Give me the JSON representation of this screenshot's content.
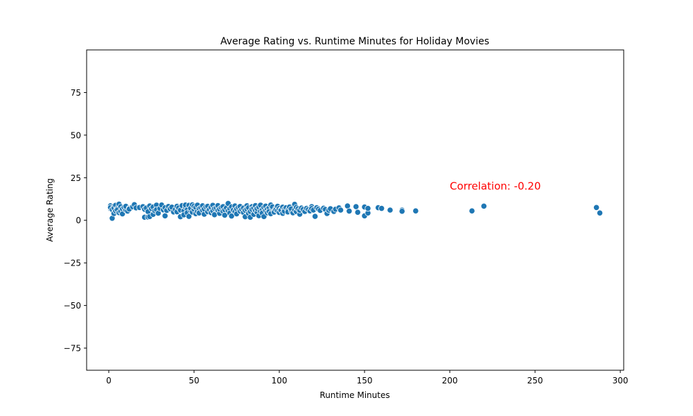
{
  "chart_data": {
    "type": "scatter",
    "title": "Average Rating vs. Runtime Minutes for Holiday Movies",
    "xlabel": "Runtime Minutes",
    "ylabel": "Average Rating",
    "xlim": [
      -13,
      302
    ],
    "ylim": [
      -88,
      100
    ],
    "xticks": [
      0,
      50,
      100,
      150,
      200,
      250,
      300
    ],
    "yticks": [
      -75,
      -50,
      -25,
      0,
      25,
      50,
      75
    ],
    "xtick_labels": [
      "0",
      "50",
      "100",
      "150",
      "200",
      "250",
      "300"
    ],
    "ytick_labels": [
      "−75",
      "−50",
      "−25",
      "0",
      "25",
      "50",
      "75"
    ],
    "grid": false,
    "marker_color": "#1f77b4",
    "annotation": {
      "text": "Correlation: -0.20",
      "x": 200,
      "y": 18,
      "color": "#ff0000"
    },
    "series": [
      {
        "points": [
          [
            1,
            8.5
          ],
          [
            1,
            6.8
          ],
          [
            1,
            7.5
          ],
          [
            2,
            6.3
          ],
          [
            2,
            1.2
          ],
          [
            3,
            8.3
          ],
          [
            3,
            4.0
          ],
          [
            3,
            7.2
          ],
          [
            4,
            5.5
          ],
          [
            4,
            8.8
          ],
          [
            5,
            7.0
          ],
          [
            5,
            6.1
          ],
          [
            6,
            9.5
          ],
          [
            6,
            4.5
          ],
          [
            7,
            8.0
          ],
          [
            7,
            5.2
          ],
          [
            8,
            6.7
          ],
          [
            8,
            3.8
          ],
          [
            9,
            7.6
          ],
          [
            10,
            6.0
          ],
          [
            10,
            8.2
          ],
          [
            11,
            5.4
          ],
          [
            12,
            7.1
          ],
          [
            12,
            6.6
          ],
          [
            14,
            7.9
          ],
          [
            15,
            9.2
          ],
          [
            16,
            7.3
          ],
          [
            18,
            7.5
          ],
          [
            20,
            8.0
          ],
          [
            21,
            1.8
          ],
          [
            21,
            6.5
          ],
          [
            22,
            7.2
          ],
          [
            23,
            5.1
          ],
          [
            23,
            1.9
          ],
          [
            24,
            8.4
          ],
          [
            24,
            2.2
          ],
          [
            25,
            6.9
          ],
          [
            26,
            7.8
          ],
          [
            26,
            3.5
          ],
          [
            27,
            5.6
          ],
          [
            28,
            8.9
          ],
          [
            28,
            6.2
          ],
          [
            29,
            4.2
          ],
          [
            30,
            7.0
          ],
          [
            31,
            9.0
          ],
          [
            32,
            6.1
          ],
          [
            33,
            2.6
          ],
          [
            33,
            7.4
          ],
          [
            34,
            5.8
          ],
          [
            35,
            8.1
          ],
          [
            36,
            6.8
          ],
          [
            37,
            7.7
          ],
          [
            38,
            4.9
          ],
          [
            39,
            6.4
          ],
          [
            40,
            8.2
          ],
          [
            40,
            5.0
          ],
          [
            41,
            7.3
          ],
          [
            42,
            2.1
          ],
          [
            42,
            6.0
          ],
          [
            43,
            8.6
          ],
          [
            44,
            5.4
          ],
          [
            44,
            3.2
          ],
          [
            45,
            7.8
          ],
          [
            45,
            9.0
          ],
          [
            46,
            6.2
          ],
          [
            46,
            4.4
          ],
          [
            47,
            8.8
          ],
          [
            47,
            2.3
          ],
          [
            48,
            5.7
          ],
          [
            48,
            7.1
          ],
          [
            49,
            9.1
          ],
          [
            49,
            4.8
          ],
          [
            50,
            6.5
          ],
          [
            50,
            8.3
          ],
          [
            51,
            3.9
          ],
          [
            51,
            7.6
          ],
          [
            52,
            5.2
          ],
          [
            52,
            8.9
          ],
          [
            53,
            6.8
          ],
          [
            53,
            4.3
          ],
          [
            54,
            7.4
          ],
          [
            55,
            5.9
          ],
          [
            55,
            8.5
          ],
          [
            56,
            3.6
          ],
          [
            56,
            6.7
          ],
          [
            57,
            7.9
          ],
          [
            58,
            5.0
          ],
          [
            58,
            8.2
          ],
          [
            59,
            6.3
          ],
          [
            60,
            4.5
          ],
          [
            60,
            7.7
          ],
          [
            61,
            8.8
          ],
          [
            61,
            5.5
          ],
          [
            62,
            6.9
          ],
          [
            62,
            3.3
          ],
          [
            63,
            7.2
          ],
          [
            64,
            5.8
          ],
          [
            64,
            8.6
          ],
          [
            65,
            4.1
          ],
          [
            65,
            6.6
          ],
          [
            66,
            7.5
          ],
          [
            67,
            5.3
          ],
          [
            67,
            8.0
          ],
          [
            68,
            6.2
          ],
          [
            68,
            3.0
          ],
          [
            69,
            7.3
          ],
          [
            70,
            9.9
          ],
          [
            70,
            5.6
          ],
          [
            71,
            6.8
          ],
          [
            71,
            4.2
          ],
          [
            72,
            7.9
          ],
          [
            72,
            2.5
          ],
          [
            73,
            6.0
          ],
          [
            74,
            8.4
          ],
          [
            74,
            5.1
          ],
          [
            75,
            6.7
          ],
          [
            75,
            3.8
          ],
          [
            76,
            7.6
          ],
          [
            77,
            5.4
          ],
          [
            77,
            8.1
          ],
          [
            78,
            6.3
          ],
          [
            79,
            4.6
          ],
          [
            79,
            7.2
          ],
          [
            80,
            2.1
          ],
          [
            80,
            5.9
          ],
          [
            81,
            8.5
          ],
          [
            81,
            6.6
          ],
          [
            82,
            4.0
          ],
          [
            82,
            7.4
          ],
          [
            83,
            1.8
          ],
          [
            83,
            5.2
          ],
          [
            84,
            8.0
          ],
          [
            84,
            6.4
          ],
          [
            85,
            3.5
          ],
          [
            85,
            7.1
          ],
          [
            86,
            5.7
          ],
          [
            86,
            8.6
          ],
          [
            87,
            4.7
          ],
          [
            87,
            6.9
          ],
          [
            88,
            2.7
          ],
          [
            88,
            7.8
          ],
          [
            89,
            5.3
          ],
          [
            89,
            8.9
          ],
          [
            90,
            6.1
          ],
          [
            90,
            4.2
          ],
          [
            91,
            7.5
          ],
          [
            91,
            2.2
          ],
          [
            92,
            5.8
          ],
          [
            92,
            8.3
          ],
          [
            93,
            6.6
          ],
          [
            93,
            4.4
          ],
          [
            94,
            7.3
          ],
          [
            94,
            5.1
          ],
          [
            95,
            9.0
          ],
          [
            95,
            3.9
          ],
          [
            96,
            6.8
          ],
          [
            96,
            7.9
          ],
          [
            97,
            5.5
          ],
          [
            97,
            4.8
          ],
          [
            98,
            7.1
          ],
          [
            98,
            6.2
          ],
          [
            99,
            8.2
          ],
          [
            99,
            5.6
          ],
          [
            100,
            4.6
          ],
          [
            100,
            7.0
          ],
          [
            101,
            6.3
          ],
          [
            101,
            5.9
          ],
          [
            102,
            7.7
          ],
          [
            102,
            4.1
          ],
          [
            103,
            6.5
          ],
          [
            103,
            5.3
          ],
          [
            104,
            7.4
          ],
          [
            105,
            6.0
          ],
          [
            105,
            4.9
          ],
          [
            106,
            7.8
          ],
          [
            107,
            5.6
          ],
          [
            107,
            6.7
          ],
          [
            108,
            4.4
          ],
          [
            109,
            9.4
          ],
          [
            109,
            6.1
          ],
          [
            110,
            5.1
          ],
          [
            110,
            7.6
          ],
          [
            111,
            6.8
          ],
          [
            112,
            3.6
          ],
          [
            112,
            5.9
          ],
          [
            113,
            7.2
          ],
          [
            114,
            6.4
          ],
          [
            115,
            5.2
          ],
          [
            116,
            7.0
          ],
          [
            117,
            6.3
          ],
          [
            118,
            5.5
          ],
          [
            119,
            8.0
          ],
          [
            119,
            6.9
          ],
          [
            120,
            6.0
          ],
          [
            121,
            2.3
          ],
          [
            122,
            7.4
          ],
          [
            123,
            6.6
          ],
          [
            124,
            5.8
          ],
          [
            126,
            7.1
          ],
          [
            127,
            6.4
          ],
          [
            128,
            4.0
          ],
          [
            129,
            5.9
          ],
          [
            130,
            6.8
          ],
          [
            132,
            5.2
          ],
          [
            133,
            6.5
          ],
          [
            135,
            7.3
          ],
          [
            136,
            6.0
          ],
          [
            140,
            8.4
          ],
          [
            141,
            5.4
          ],
          [
            145,
            8.0
          ],
          [
            146,
            4.7
          ],
          [
            150,
            7.8
          ],
          [
            150,
            2.6
          ],
          [
            152,
            4.3
          ],
          [
            152,
            7.0
          ],
          [
            158,
            7.4
          ],
          [
            160,
            7.0
          ],
          [
            165,
            6.0
          ],
          [
            172,
            6.0
          ],
          [
            172,
            5.3
          ],
          [
            180,
            5.5
          ],
          [
            213,
            5.5
          ],
          [
            220,
            8.3
          ],
          [
            286,
            7.5
          ],
          [
            288,
            4.3
          ]
        ]
      }
    ]
  }
}
